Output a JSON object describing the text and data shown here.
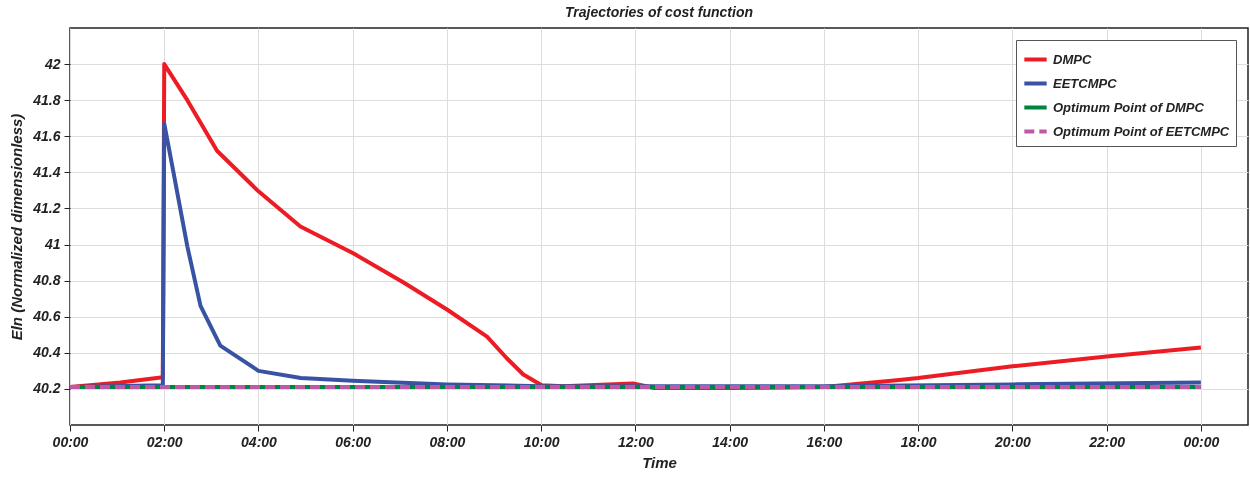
{
  "chart_data": {
    "type": "line",
    "title": "Trajectories of cost function",
    "xlabel": "Time",
    "ylabel": "Eln (Normalized dimensionless)",
    "xlim": [
      0,
      25
    ],
    "xticks": [
      {
        "value": 0,
        "label": "00:00"
      },
      {
        "value": 2,
        "label": "02:00"
      },
      {
        "value": 4,
        "label": "04:00"
      },
      {
        "value": 6,
        "label": "06:00"
      },
      {
        "value": 8,
        "label": "08:00"
      },
      {
        "value": 10,
        "label": "10:00"
      },
      {
        "value": 12,
        "label": "12:00"
      },
      {
        "value": 14,
        "label": "14:00"
      },
      {
        "value": 16,
        "label": "16:00"
      },
      {
        "value": 18,
        "label": "18:00"
      },
      {
        "value": 20,
        "label": "20:00"
      },
      {
        "value": 22,
        "label": "22:00"
      },
      {
        "value": 24,
        "label": "00:00"
      }
    ],
    "ylim": [
      40,
      42.2
    ],
    "yticks": [
      40.2,
      40.4,
      40.6,
      40.8,
      41,
      41.2,
      41.4,
      41.6,
      41.8,
      42
    ],
    "grid": true,
    "legend": "top right",
    "marker": "none",
    "series": [
      {
        "name": "DMPC",
        "color": "#ed1c24",
        "line_style": "solid",
        "x": [
          0,
          1.07,
          1.97,
          2,
          2.49,
          3.12,
          4,
          4.89,
          6.02,
          7.08,
          8,
          8.85,
          9.27,
          9.62,
          10.01,
          10.47,
          11.95,
          12.4,
          14,
          16,
          17.6,
          18,
          20,
          22,
          24
        ],
        "values": [
          40.21,
          40.236,
          40.264,
          42,
          41.8,
          41.52,
          41.295,
          41.1,
          40.95,
          40.79,
          40.64,
          40.49,
          40.37,
          40.28,
          40.22,
          40.215,
          40.23,
          40.205,
          40.205,
          40.21,
          40.25,
          40.26,
          40.325,
          40.38,
          40.43
        ]
      },
      {
        "name": "EETCMPC",
        "color": "#3953a4",
        "line_style": "solid",
        "x": [
          0,
          1.97,
          2,
          2.2,
          2.49,
          2.77,
          3.19,
          4,
          4.9,
          6,
          8,
          10,
          16,
          20,
          24
        ],
        "values": [
          40.21,
          40.22,
          41.67,
          41.395,
          40.99,
          40.66,
          40.44,
          40.3,
          40.26,
          40.245,
          40.225,
          40.215,
          40.215,
          40.225,
          40.235
        ]
      },
      {
        "name": "Optimum Point of DMPC",
        "color": "#00843d",
        "line_style": "solid",
        "x": [
          0,
          24
        ],
        "values": [
          40.21,
          40.21
        ]
      },
      {
        "name": "Optimum Point of EETCMPC",
        "color": "#c058a8",
        "line_style": "dashed",
        "x": [
          0,
          24
        ],
        "values": [
          40.21,
          40.21
        ]
      }
    ]
  }
}
